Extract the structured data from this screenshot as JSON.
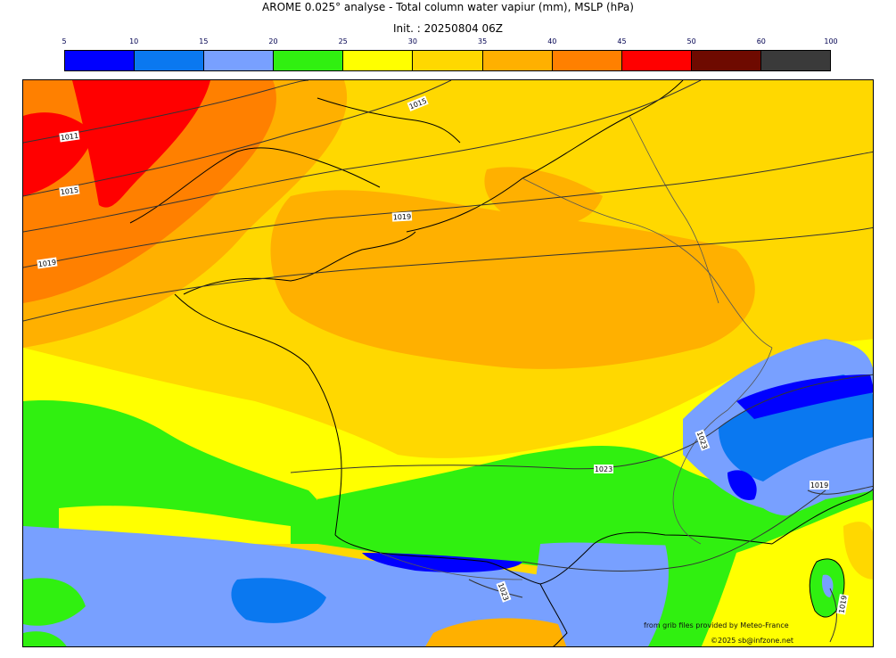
{
  "header": {
    "title": "AROME 0.025° analyse - Total column water vapiur (mm), MSLP (hPa)",
    "init": "Init. : 20250804 06Z"
  },
  "legend": {
    "ticks": [
      "5",
      "10",
      "15",
      "20",
      "25",
      "30",
      "35",
      "40",
      "45",
      "50",
      "60",
      "100"
    ],
    "colors": [
      "#0000ff",
      "#0a78f0",
      "#78a0ff",
      "#30f010",
      "#ffff00",
      "#ffd800",
      "#ffb000",
      "#ff8000",
      "#ff0000",
      "#6e0a00",
      "#3a3a3a"
    ]
  },
  "isobars": {
    "labels": [
      "1011",
      "1015",
      "1015",
      "1019",
      "1019",
      "1023",
      "1023",
      "1019",
      "1023",
      "1019"
    ]
  },
  "credits": {
    "source": "from grib files provided by Meteo-France",
    "copyright": "©2025 sb@infzone.net"
  }
}
